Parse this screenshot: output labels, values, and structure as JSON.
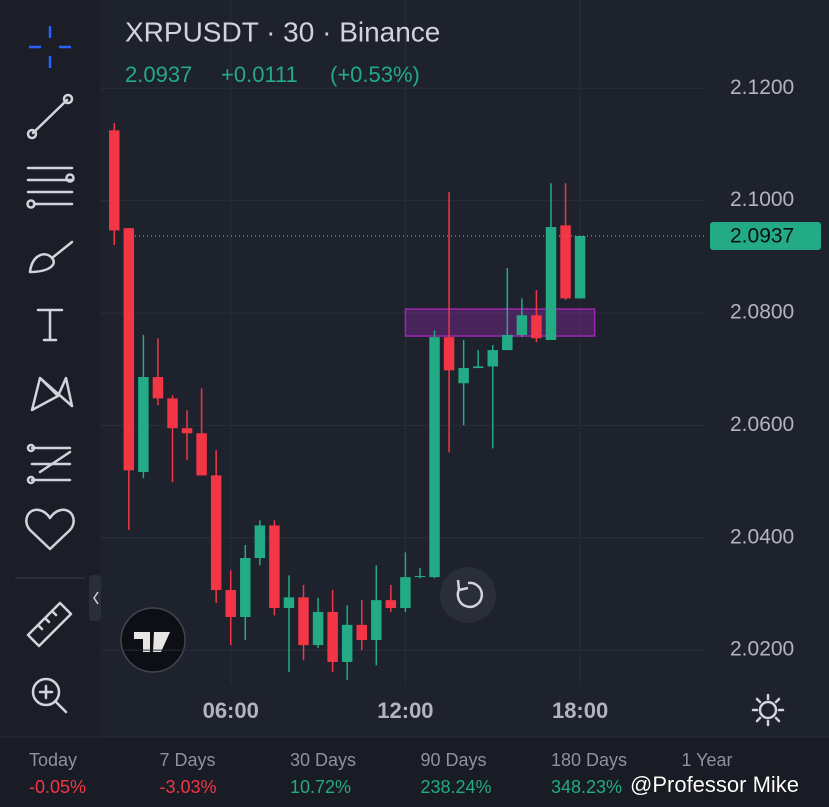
{
  "chart_data": {
    "type": "candlestick",
    "title": "XRPUSDT · 30 · Binance",
    "last_price": 2.0937,
    "change": "+0.0111",
    "change_pct": "(+0.53%)",
    "x": [
      2,
      2.5,
      3,
      3.5,
      4,
      4.5,
      5,
      5.5,
      6,
      6.5,
      7,
      7.5,
      8,
      8.5,
      9,
      9.5,
      10,
      10.5,
      11,
      11.5,
      12,
      12.5,
      13,
      13.5,
      14,
      14.5,
      15,
      15.5,
      16,
      16.5,
      17,
      17.5,
      18
    ],
    "open": [
      2.1125,
      2.0951,
      2.0517,
      2.0686,
      2.0648,
      2.0595,
      2.0586,
      2.0511,
      2.0307,
      2.0259,
      2.0364,
      2.0422,
      2.0275,
      2.0294,
      2.0209,
      2.0268,
      2.0179,
      2.0245,
      2.0218,
      2.0289,
      2.0275,
      2.033,
      2.033,
      2.0757,
      2.0675,
      2.0702,
      2.0705,
      2.0734,
      2.0761,
      2.0796,
      2.0752,
      2.0956,
      2.0826
    ],
    "high": [
      2.1138,
      2.0951,
      2.0761,
      2.0755,
      2.0654,
      2.0627,
      2.0666,
      2.0556,
      2.0342,
      2.0387,
      2.0431,
      2.0431,
      2.0333,
      2.0316,
      2.0293,
      2.0307,
      2.028,
      2.0289,
      2.0351,
      2.0316,
      2.0374,
      2.0346,
      2.0769,
      2.1015,
      2.0752,
      2.0734,
      2.0743,
      2.088,
      2.0826,
      2.0841,
      2.1031,
      2.1031,
      2.0937
    ],
    "low": [
      2.0921,
      2.0414,
      2.0506,
      2.0636,
      2.0499,
      2.0538,
      2.0511,
      2.0284,
      2.0209,
      2.0218,
      2.0351,
      2.0262,
      2.0161,
      2.0182,
      2.0204,
      2.0161,
      2.0147,
      2.02,
      2.0173,
      2.0268,
      2.0268,
      2.0328,
      2.0328,
      2.0552,
      2.06,
      2.0702,
      2.0559,
      2.0734,
      2.0757,
      2.0748,
      2.0752,
      2.0823,
      2.0826
    ],
    "close": [
      2.0947,
      2.052,
      2.0686,
      2.0648,
      2.0595,
      2.0586,
      2.0511,
      2.0307,
      2.0259,
      2.0364,
      2.0422,
      2.0275,
      2.0294,
      2.0209,
      2.0268,
      2.0179,
      2.0245,
      2.0218,
      2.0289,
      2.0275,
      2.033,
      2.0332,
      2.0757,
      2.0698,
      2.0702,
      2.0705,
      2.0734,
      2.0761,
      2.0796,
      2.0755,
      2.0953,
      2.0826,
      2.0937
    ],
    "up_color": "#22ab84",
    "down_color": "#f23645",
    "xlim": [
      1.51,
      22.29
    ],
    "xticks": [
      {
        "value": 6,
        "label": "06:00"
      },
      {
        "value": 12,
        "label": "12:00"
      },
      {
        "value": 18,
        "label": "18:00"
      }
    ],
    "ylim": [
      2.0138,
      2.1357
    ],
    "yticks": [
      {
        "value": 2.02,
        "label": "2.0200"
      },
      {
        "value": 2.04,
        "label": "2.0400"
      },
      {
        "value": 2.06,
        "label": "2.0600"
      },
      {
        "value": 2.08,
        "label": "2.0800"
      },
      {
        "value": 2.1,
        "label": "2.1000"
      },
      {
        "value": 2.12,
        "label": "2.1200"
      }
    ],
    "grid": true,
    "zone": {
      "x": [
        12,
        18.5
      ],
      "y": [
        2.0759,
        2.0807
      ],
      "color": "#9c27b0"
    }
  },
  "performance": [
    {
      "label": "Today",
      "value": "-0.05%"
    },
    {
      "label": "7 Days",
      "value": "-3.03%"
    },
    {
      "label": "30 Days",
      "value": "10.72%"
    },
    {
      "label": "90 Days",
      "value": "238.24%"
    },
    {
      "label": "180 Days",
      "value": "348.23%"
    },
    {
      "label": "1 Year"
    }
  ],
  "watermark": "@Professor Mike"
}
